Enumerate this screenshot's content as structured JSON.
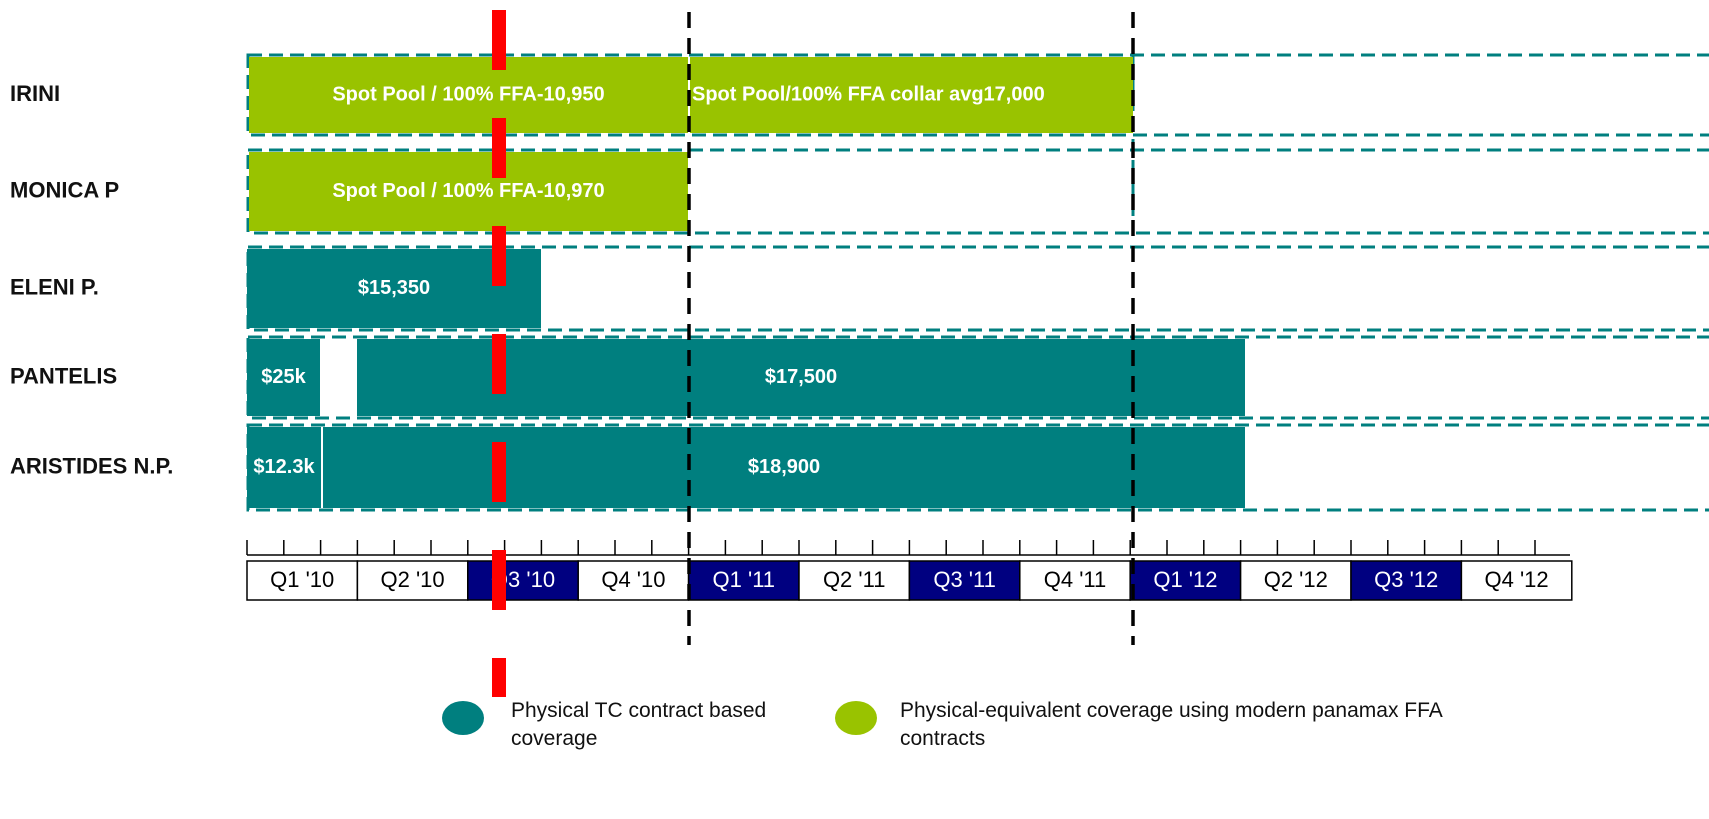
{
  "vessels": [
    {
      "name": "IRINI",
      "contracts": [
        "Spot Pool / 100% FFA-10,950",
        "Spot Pool/100% FFA collar avg17,000"
      ]
    },
    {
      "name": "MONICA P",
      "contracts": [
        "Spot Pool / 100% FFA-10,970"
      ]
    },
    {
      "name": "ELENI P.",
      "contracts": [
        "$15,350"
      ]
    },
    {
      "name": "PANTELIS",
      "contracts": [
        "$25k",
        "$17,500"
      ]
    },
    {
      "name": "ARISTIDES N.P.",
      "contracts": [
        "$12.3k",
        "$18,900"
      ]
    }
  ],
  "timeline": {
    "quarters": [
      {
        "label": "Q1 '10",
        "highlighted": false
      },
      {
        "label": "Q2 '10",
        "highlighted": false
      },
      {
        "label": "Q3 '10",
        "highlighted": true
      },
      {
        "label": "Q4 '10",
        "highlighted": false
      },
      {
        "label": "Q1 '11",
        "highlighted": true
      },
      {
        "label": "Q2 '11",
        "highlighted": false
      },
      {
        "label": "Q3 '11",
        "highlighted": true
      },
      {
        "label": "Q4 '11",
        "highlighted": false
      },
      {
        "label": "Q1 '12",
        "highlighted": true
      },
      {
        "label": "Q2 '12",
        "highlighted": false
      },
      {
        "label": "Q3 '12",
        "highlighted": true
      },
      {
        "label": "Q4 '12",
        "highlighted": false
      }
    ]
  },
  "legend": [
    {
      "label": "Physical TC contract based coverage",
      "color": "#007f7f"
    },
    {
      "label": "Physical-equivalent coverage using modern panamax FFA contracts",
      "color": "#99c300"
    }
  ]
}
